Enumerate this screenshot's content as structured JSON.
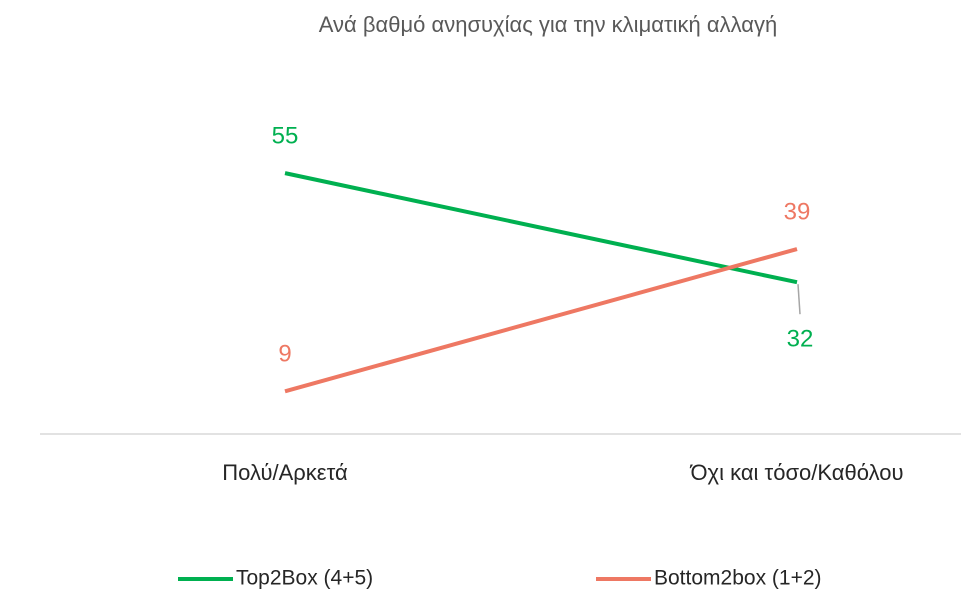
{
  "chart_data": {
    "type": "line",
    "title": "Ανά βαθμό ανησυχίας για την κλιματική αλλαγή",
    "categories": [
      "Πολύ/Αρκετά",
      "Όχι και τόσο/Καθόλου"
    ],
    "series": [
      {
        "name": "Top2Box (4+5)",
        "color": "#00b050",
        "values": [
          55,
          32
        ]
      },
      {
        "name": "Bottom2box (1+2)",
        "color": "#ee7863",
        "values": [
          9,
          39
        ]
      }
    ],
    "ylim": [
      0,
      70
    ],
    "legend": "bottom"
  }
}
